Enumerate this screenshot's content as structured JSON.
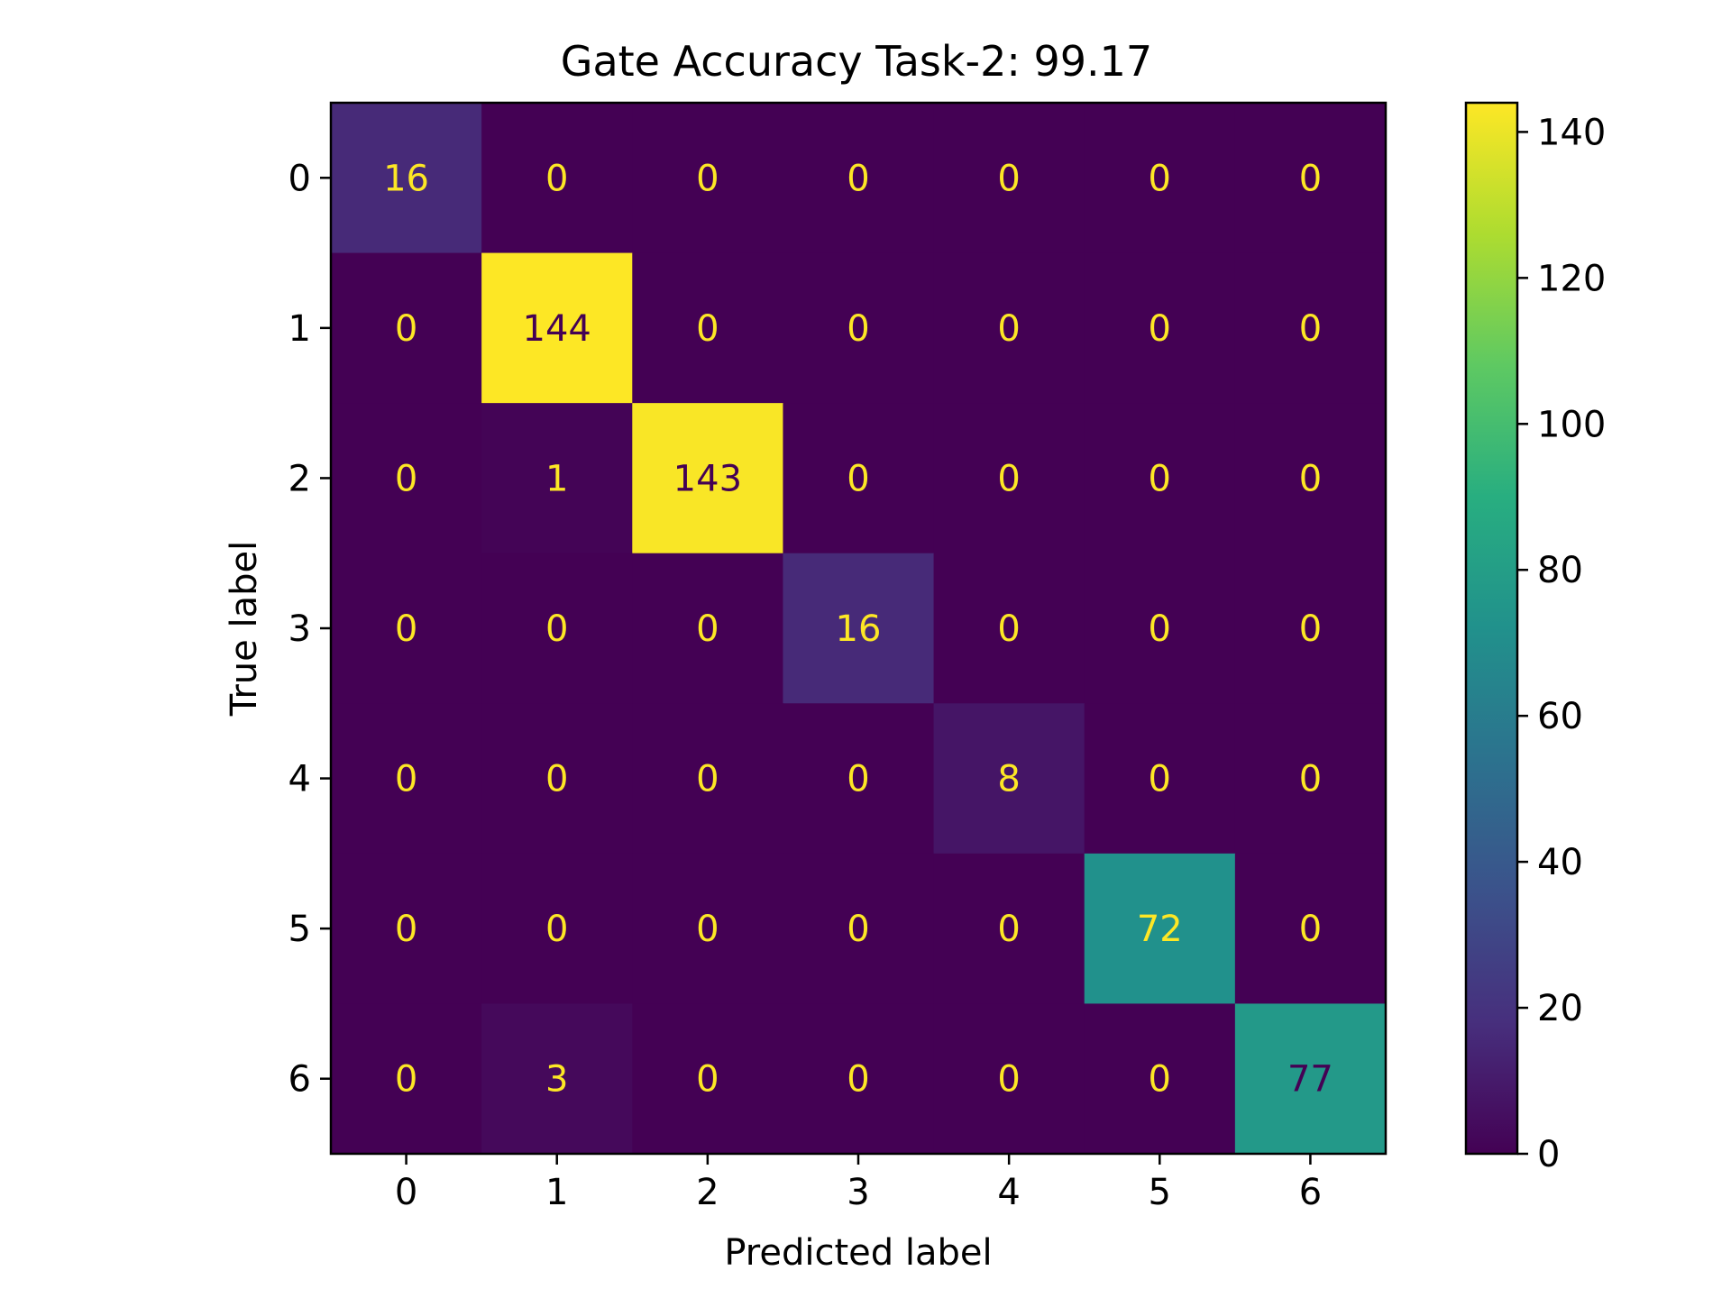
{
  "chart_data": {
    "type": "heatmap",
    "title": "Gate Accuracy Task-2: 99.17",
    "xlabel": "Predicted label",
    "ylabel": "True label",
    "x_categories": [
      "0",
      "1",
      "2",
      "3",
      "4",
      "5",
      "6"
    ],
    "y_categories": [
      "0",
      "1",
      "2",
      "3",
      "4",
      "5",
      "6"
    ],
    "matrix": [
      [
        16,
        0,
        0,
        0,
        0,
        0,
        0
      ],
      [
        0,
        144,
        0,
        0,
        0,
        0,
        0
      ],
      [
        0,
        1,
        143,
        0,
        0,
        0,
        0
      ],
      [
        0,
        0,
        0,
        16,
        0,
        0,
        0
      ],
      [
        0,
        0,
        0,
        0,
        8,
        0,
        0
      ],
      [
        0,
        0,
        0,
        0,
        0,
        72,
        0
      ],
      [
        0,
        3,
        0,
        0,
        0,
        0,
        77
      ]
    ],
    "colormap": "viridis",
    "value_range": [
      0,
      144
    ],
    "colorbar_ticks": [
      "0",
      "20",
      "40",
      "60",
      "80",
      "100",
      "120",
      "140"
    ],
    "text_color_light": "#fde725",
    "text_color_dark": "#440154"
  }
}
